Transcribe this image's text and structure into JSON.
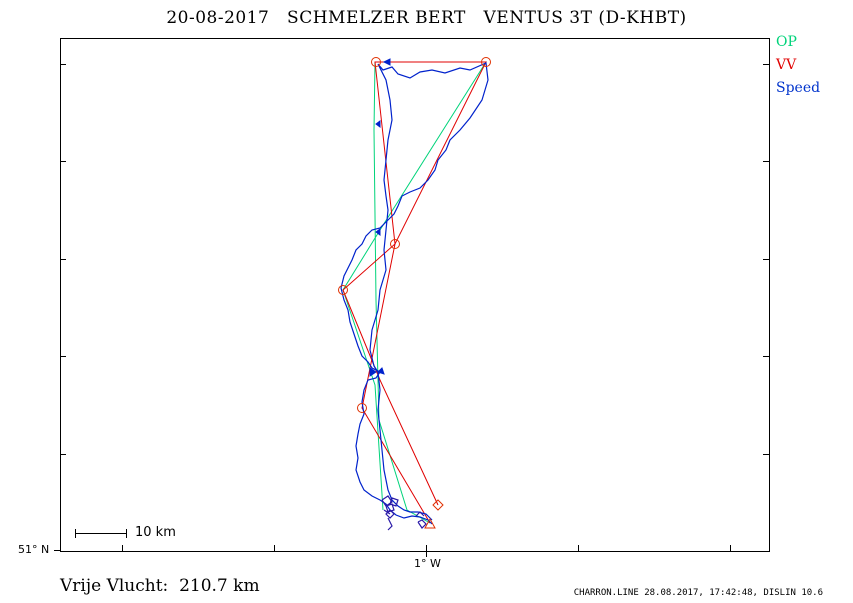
{
  "title": "20-08-2017   SCHMELZER BERT   VENTUS 3T (D-KHBT)",
  "legend": {
    "op": {
      "label": "OP",
      "color": "#00d37a"
    },
    "vv": {
      "label": "VV",
      "color": "#e00000"
    },
    "speed": {
      "label": "Speed",
      "color": "#0033cc"
    }
  },
  "axes": {
    "latitude_label": "51° N",
    "longitude_label": "1° W"
  },
  "scale_bar": {
    "label": "10 km"
  },
  "distance_text": "Vrije Vlucht:  210.7 km",
  "footer_text": "CHARRON.LINE 28.08.2017, 17:42:48, DISLIN 10.6",
  "track_color": "#0022cc"
}
